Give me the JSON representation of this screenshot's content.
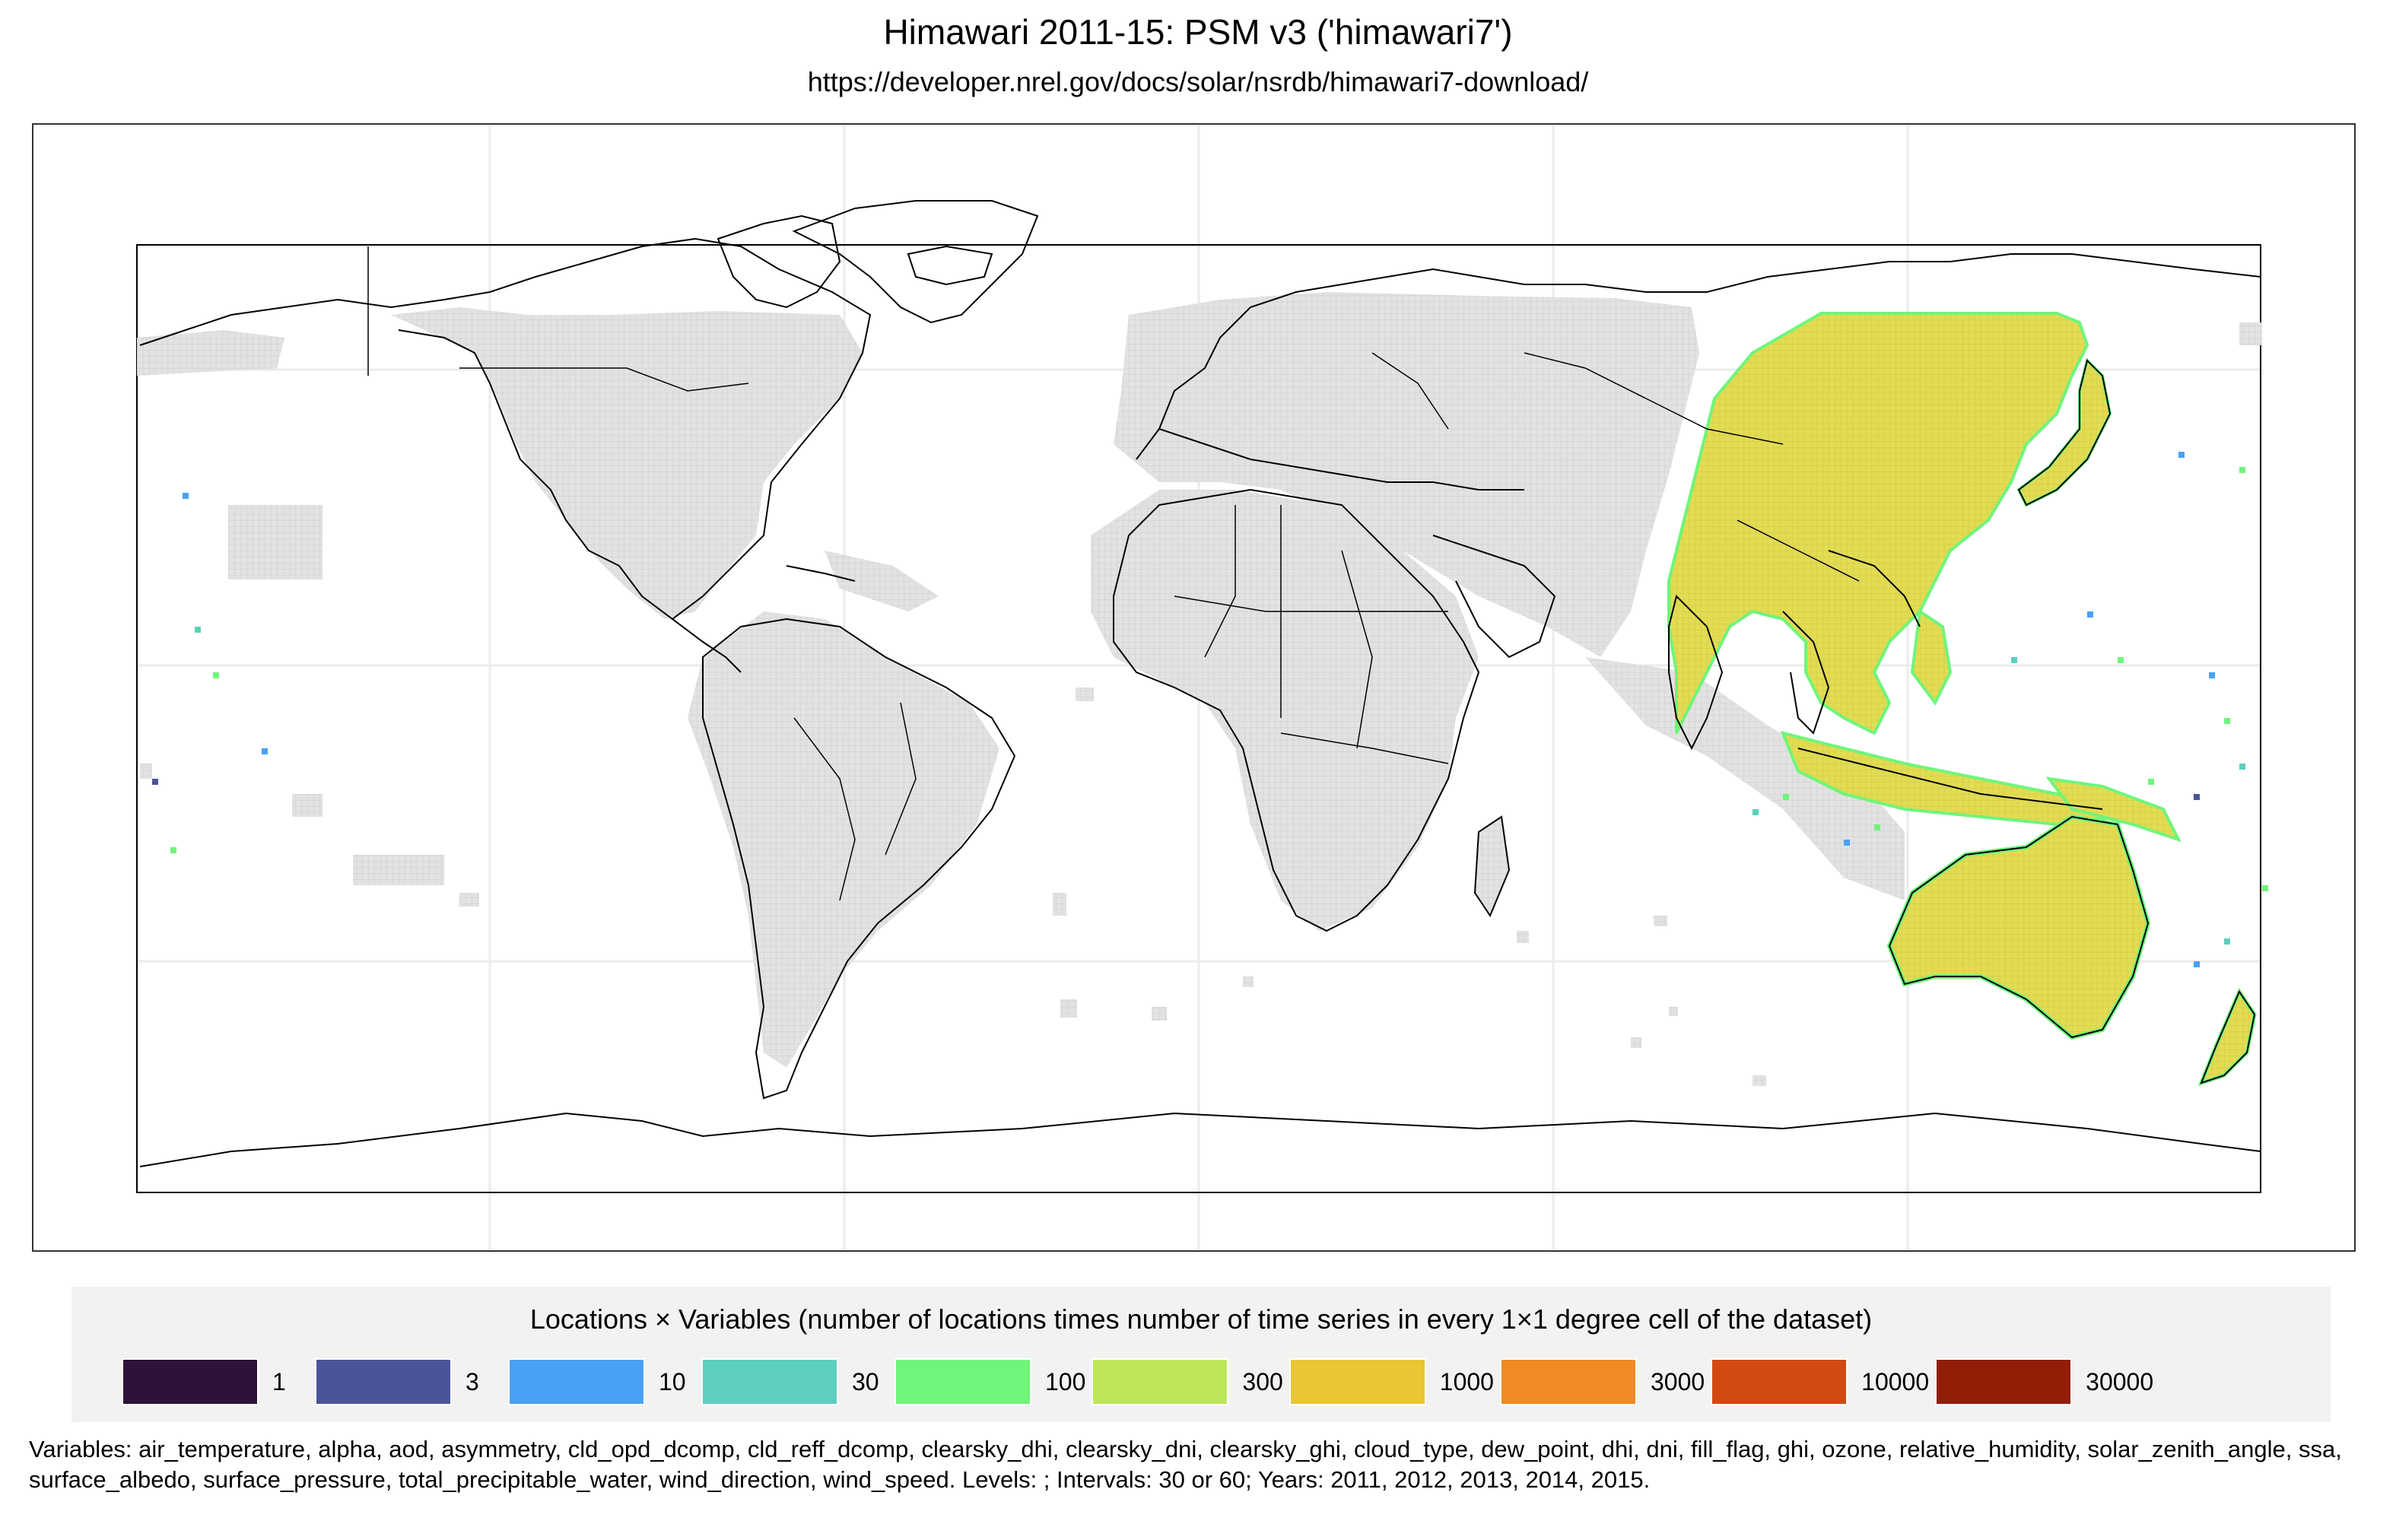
{
  "title": "Himawari 2011-15: PSM v3 ('himawari7')",
  "subtitle": "https://developer.nrel.gov/docs/solar/nsrdb/himawari7-download/",
  "legend": {
    "title": "Locations × Variables (number of locations times number of time series in every 1×1 degree cell of the dataset)",
    "items": [
      {
        "label": "1",
        "color": "#2d1239"
      },
      {
        "label": "3",
        "color": "#4a5498"
      },
      {
        "label": "10",
        "color": "#4aa0f5"
      },
      {
        "label": "30",
        "color": "#5ccfbf"
      },
      {
        "label": "100",
        "color": "#6ff57a"
      },
      {
        "label": "300",
        "color": "#bde65a"
      },
      {
        "label": "1000",
        "color": "#e8c634"
      },
      {
        "label": "3000",
        "color": "#f08a22"
      },
      {
        "label": "10000",
        "color": "#d24a12"
      },
      {
        "label": "30000",
        "color": "#921e08"
      }
    ]
  },
  "footnote": "Variables: air_temperature, alpha, aod, asymmetry, cld_opd_dcomp, cld_reff_dcomp, clearsky_dhi, clearsky_dni, clearsky_ghi, cloud_type, dew_point, dhi, dni, fill_flag, ghi, ozone, relative_humidity, solar_zenith_angle, ssa, surface_albedo, surface_pressure, total_precipitable_water, wind_direction, wind_speed. Levels: ; Intervals: 30 or 60; Years: 2011, 2012, 2013, 2014, 2015.",
  "map": {
    "projection": "equirectangular",
    "lon_range": [
      -180,
      180
    ],
    "lat_range": [
      -90,
      90
    ],
    "colors": {
      "no_data_cell": "#d9d9d9",
      "himawari_fill": "#e2dc52",
      "coast_fill": "#6ff57a",
      "coast_line": "#000000",
      "graticule": "#ebebeb"
    },
    "coverage_lon_range": [
      70,
      180
    ]
  }
}
